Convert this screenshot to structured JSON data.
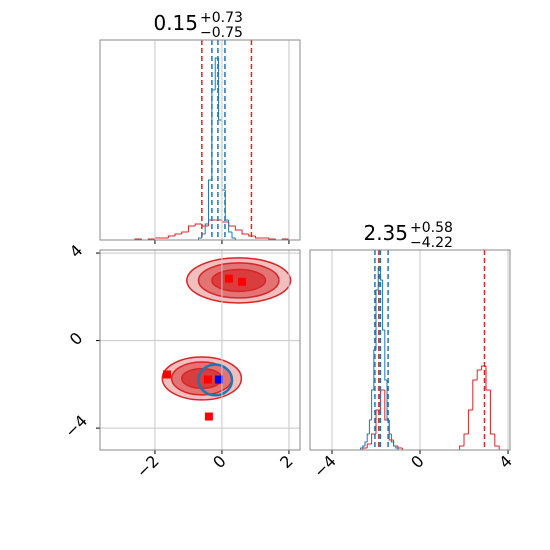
{
  "chart_data": [
    {
      "type": "histogram",
      "title": {
        "main": "0.15",
        "upper": "+0.73",
        "lower": "−0.75"
      },
      "xlim": [
        -3.64,
        2.33
      ],
      "ylim": [
        0,
        100
      ],
      "xticks": [
        -2,
        0,
        2
      ],
      "grid": true,
      "series": [
        {
          "name": "red",
          "color": "#d62728",
          "bins": [
            -3.6,
            -3.4,
            -3.2,
            -3.0,
            -2.8,
            -2.6,
            -2.4,
            -2.2,
            -2.0,
            -1.8,
            -1.6,
            -1.4,
            -1.2,
            -1.0,
            -0.8,
            -0.6,
            -0.4,
            -0.2,
            0.0,
            0.2,
            0.4,
            0.6,
            0.8,
            1.0,
            1.2,
            1.4,
            1.6,
            1.8,
            2.0,
            2.2,
            2.4
          ],
          "values": [
            0,
            0,
            0,
            0,
            0,
            0.5,
            0,
            0.5,
            1,
            1,
            2,
            3,
            4,
            7,
            8,
            7,
            10,
            10,
            9,
            7,
            5,
            3,
            2,
            1,
            1,
            0.5,
            0,
            0.5,
            0,
            0
          ],
          "quantiles": [
            -0.6,
            0.88
          ]
        },
        {
          "name": "blue",
          "color": "#1f77b4",
          "bins": [
            -0.8,
            -0.7,
            -0.6,
            -0.5,
            -0.4,
            -0.3,
            -0.2,
            -0.1,
            0.0,
            0.1,
            0.2,
            0.3,
            0.4,
            0.5,
            0.6
          ],
          "values": [
            0,
            1,
            3,
            8,
            30,
            75,
            91,
            60,
            25,
            10,
            4,
            1,
            0,
            0
          ],
          "quantiles": [
            -0.3,
            -0.12,
            0.09
          ]
        }
      ]
    },
    {
      "type": "scatter",
      "xlim": [
        -3.64,
        2.33
      ],
      "ylim": [
        -5.0,
        4.14
      ],
      "xticks": [
        {
          "value": -2,
          "label": "−2"
        },
        0,
        2
      ],
      "yticks": [
        {
          "value": -4,
          "label": "−4"
        },
        0,
        4
      ],
      "grid": true,
      "contours": [
        {
          "color": "#d62728",
          "x": 0.5,
          "y": 2.75,
          "rx": [
            1.55,
            1.2,
            0.8
          ],
          "ry": [
            1.03,
            0.8,
            0.5
          ]
        },
        {
          "color": "#d62728",
          "x": -0.6,
          "y": -1.73,
          "rx": [
            1.18,
            0.9,
            0.6
          ],
          "ry": [
            0.98,
            0.75,
            0.45
          ]
        },
        {
          "color": "#1f77b4",
          "x": -0.2,
          "y": -1.8,
          "rx": [
            0.5
          ],
          "ry": [
            0.7
          ]
        }
      ],
      "series": [
        {
          "name": "red",
          "color": "#ff0000",
          "x": [
            0.21,
            0.6,
            -1.64,
            -0.42,
            -0.39
          ],
          "values": [
            2.83,
            2.69,
            -1.55,
            -1.78,
            -3.47
          ]
        },
        {
          "name": "blue",
          "color": "#0000ff",
          "x": [
            -0.09
          ],
          "values": [
            -1.78
          ]
        }
      ]
    },
    {
      "type": "histogram",
      "title": {
        "main": "2.35",
        "upper": "+0.58",
        "lower": "−4.22"
      },
      "xlim": [
        -5.0,
        4.09
      ],
      "ylim": [
        0,
        100
      ],
      "xticks": [
        {
          "value": -4,
          "label": "−4"
        },
        0,
        4
      ],
      "grid": true,
      "series": [
        {
          "name": "red",
          "color": "#d62728",
          "bins": [
            -2.6,
            -2.4,
            -2.2,
            -2.0,
            -1.8,
            -1.6,
            -1.4,
            -1.2,
            -1.0,
            -0.8,
            -0.6,
            -0.4,
            -0.2,
            0.0,
            0.2,
            0.4,
            0.6,
            0.8,
            1.0,
            1.2,
            1.4,
            1.6,
            1.8,
            2.0,
            2.2,
            2.4,
            2.6,
            2.8,
            3.0,
            3.2,
            3.4,
            3.6,
            3.8
          ],
          "values": [
            1,
            3,
            8,
            20,
            30,
            15,
            5,
            2,
            1,
            0,
            0,
            0,
            0,
            0,
            0,
            0,
            0,
            0,
            0,
            0,
            0,
            0,
            2,
            8,
            20,
            35,
            40,
            42,
            30,
            8,
            2,
            0
          ],
          "quantiles": [
            -1.87,
            2.93
          ]
        },
        {
          "name": "blue",
          "color": "#1f77b4",
          "bins": [
            -2.8,
            -2.7,
            -2.6,
            -2.5,
            -2.4,
            -2.3,
            -2.2,
            -2.1,
            -2.0,
            -1.9,
            -1.8,
            -1.7,
            -1.6,
            -1.5,
            -1.4,
            -1.3,
            -1.2,
            -1.1,
            -1.0,
            -0.9,
            -0.8
          ],
          "values": [
            0,
            1,
            2,
            4,
            8,
            15,
            30,
            50,
            80,
            91,
            85,
            60,
            35,
            15,
            8,
            4,
            2,
            1,
            0,
            0
          ],
          "quantiles": [
            -2.05,
            -1.8,
            -1.45
          ]
        }
      ]
    }
  ]
}
